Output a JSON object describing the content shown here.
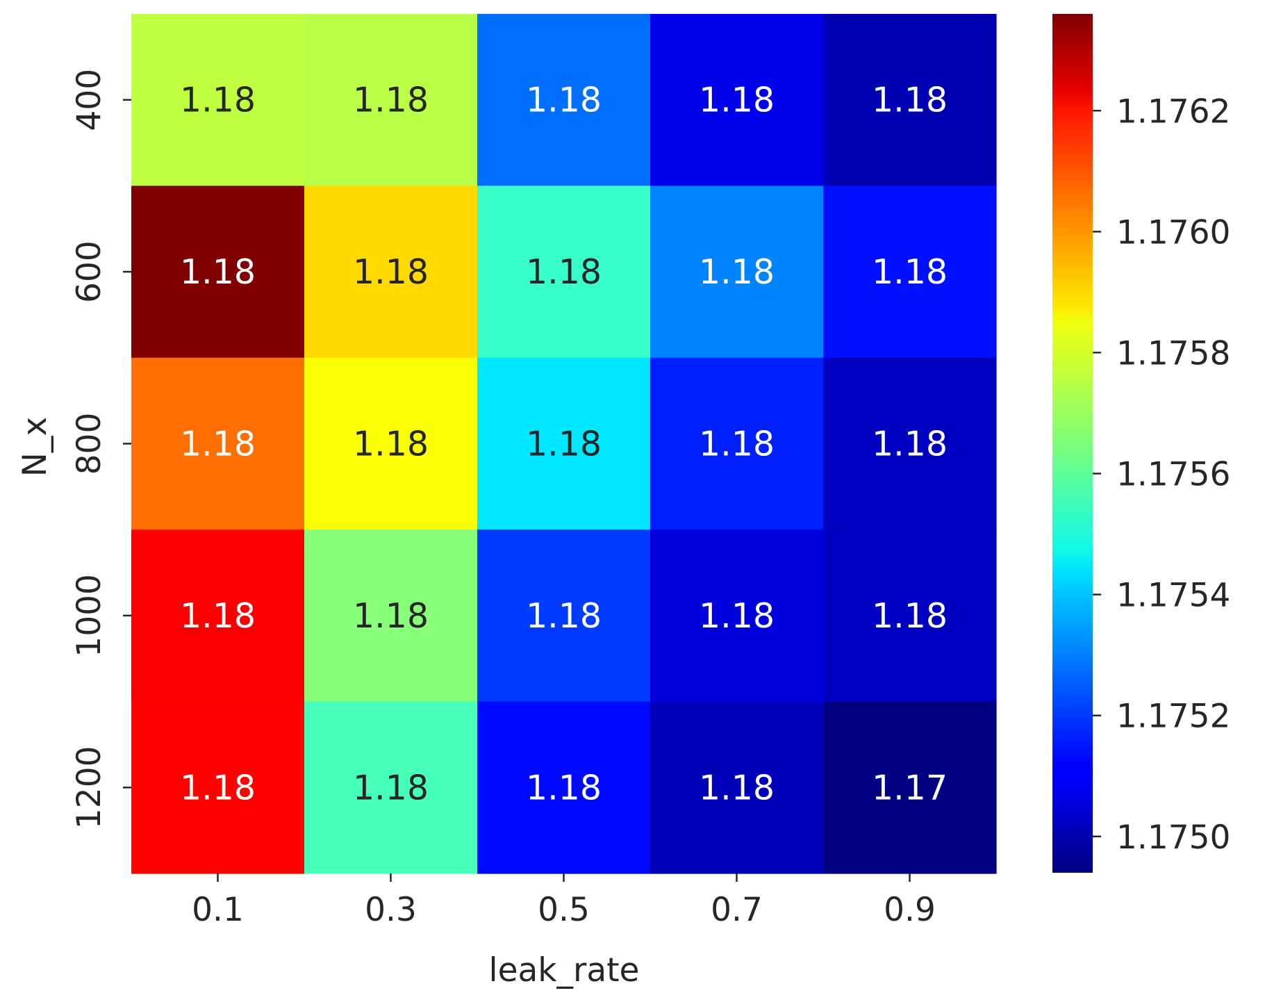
{
  "chart_data": {
    "type": "heatmap",
    "xlabel": "leak_rate",
    "ylabel": "N_x",
    "x_categories": [
      "0.1",
      "0.3",
      "0.5",
      "0.7",
      "0.9"
    ],
    "y_categories": [
      "400",
      "600",
      "800",
      "1000",
      "1200"
    ],
    "values": [
      [
        1.17574,
        1.17573,
        1.17527,
        1.17509,
        1.17501
      ],
      [
        1.17636,
        1.17588,
        1.17555,
        1.1753,
        1.17514
      ],
      [
        1.17603,
        1.17582,
        1.17544,
        1.17516,
        1.17503
      ],
      [
        1.17619,
        1.17566,
        1.1752,
        1.17507,
        1.17503
      ],
      [
        1.17618,
        1.17557,
        1.17513,
        1.17502,
        1.17494
      ]
    ],
    "annotations": [
      [
        "1.18",
        "1.18",
        "1.18",
        "1.18",
        "1.18"
      ],
      [
        "1.18",
        "1.18",
        "1.18",
        "1.18",
        "1.18"
      ],
      [
        "1.18",
        "1.18",
        "1.18",
        "1.18",
        "1.18"
      ],
      [
        "1.18",
        "1.18",
        "1.18",
        "1.18",
        "1.18"
      ],
      [
        "1.18",
        "1.18",
        "1.18",
        "1.18",
        "1.17"
      ]
    ],
    "colormap": "jet",
    "vmin": 1.17494,
    "vmax": 1.17636,
    "colorbar_ticks": [
      "1.1750",
      "1.1752",
      "1.1754",
      "1.1756",
      "1.1758",
      "1.1760",
      "1.1762"
    ],
    "colorbar_tick_values": [
      1.175,
      1.1752,
      1.1754,
      1.1756,
      1.1758,
      1.176,
      1.1762
    ],
    "annotation_colors": {
      "dark": "#262626",
      "light": "#ffffff"
    }
  }
}
